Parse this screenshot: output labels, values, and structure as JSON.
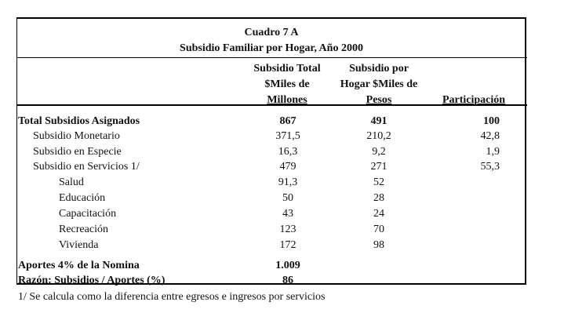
{
  "title": "Cuadro 7 A",
  "subtitle": "Subsidio Familiar por Hogar, Año 2000",
  "headers": {
    "col1": [
      "Subsidio Total",
      "$Miles de",
      "Millones"
    ],
    "col2": [
      "Subsidio por",
      "Hogar $Miles de",
      "Pesos"
    ],
    "col3": "Participación"
  },
  "rows": [
    {
      "label": "Total Subsidios Asignados",
      "v1": "867",
      "v2": "491",
      "v3": "100"
    },
    {
      "label": "Subsidio Monetario",
      "v1": "371,5",
      "v2": "210,2",
      "v3": "42,8"
    },
    {
      "label": "Subsidio en Especie",
      "v1": "16,3",
      "v2": "9,2",
      "v3": "1,9"
    },
    {
      "label": "Subsidio en Servicios 1/",
      "v1": "479",
      "v2": "271",
      "v3": "55,3"
    },
    {
      "label": "Salud",
      "v1": "91,3",
      "v2": "52"
    },
    {
      "label": "Educación",
      "v1": "50",
      "v2": "28"
    },
    {
      "label": "Capacitación",
      "v1": "43",
      "v2": "24"
    },
    {
      "label": "Recreación",
      "v1": "123",
      "v2": "70"
    },
    {
      "label": "Vivienda",
      "v1": "172",
      "v2": "98"
    },
    {
      "label": "Aportes 4% de la Nomina",
      "v1": "1.009"
    },
    {
      "label": "Razón: Subsidios / Aportes (%)",
      "v1": "86"
    }
  ],
  "footnote": "1/ Se calcula como la diferencia entre egresos e ingresos por servicios"
}
